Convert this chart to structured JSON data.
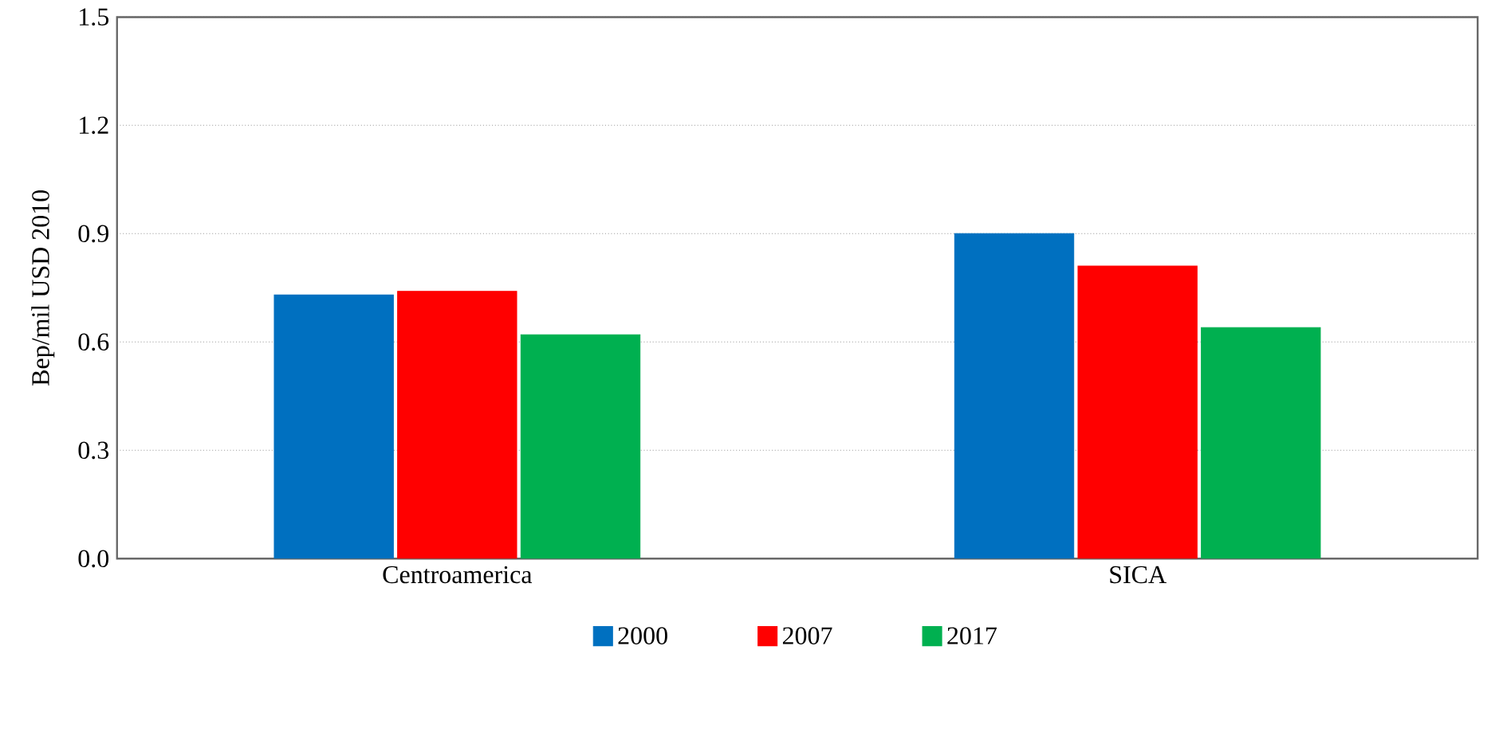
{
  "chart_data": {
    "type": "bar",
    "ylabel": "Bep/mil USD 2010",
    "categories": [
      "Centroamerica",
      "SICA"
    ],
    "series": [
      {
        "name": "2000",
        "color": "#0070c0",
        "values": [
          0.73,
          0.9
        ]
      },
      {
        "name": "2007",
        "color": "#ff0000",
        "values": [
          0.74,
          0.81
        ]
      },
      {
        "name": "2017",
        "color": "#00b050",
        "values": [
          0.62,
          0.64
        ]
      }
    ],
    "ylim": [
      0,
      1.5
    ],
    "yticks": [
      {
        "value": 0,
        "label": "0.0"
      },
      0.3,
      0.6,
      0.9,
      1.2,
      1.5
    ],
    "grid": "y",
    "legend": "bottom"
  }
}
